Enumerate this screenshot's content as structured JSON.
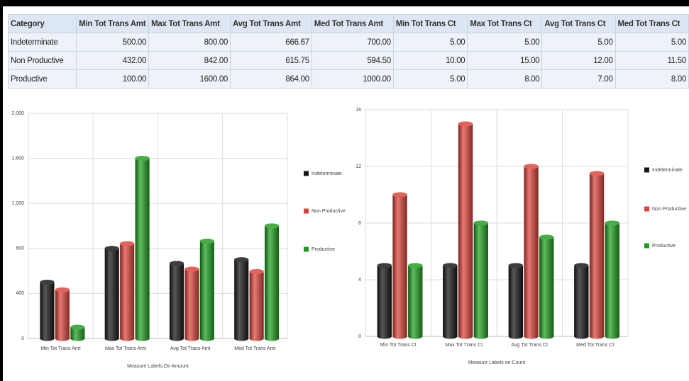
{
  "table": {
    "columns": [
      "Category",
      "Min Tot Trans Amt",
      "Max Tot Trans Amt",
      "Avg Tot Trans Amt",
      "Med Tot Trans Amt",
      "Min Tot Trans Ct",
      "Max Tot Trans Ct",
      "Avg Tot Trans Ct",
      "Med Tot Trans Ct"
    ],
    "rows": [
      [
        "Indeterminate",
        "500.00",
        "800.00",
        "666.67",
        "700.00",
        "5.00",
        "5.00",
        "5.00",
        "5.00"
      ],
      [
        "Non Productive",
        "432.00",
        "842.00",
        "615.75",
        "594.50",
        "10.00",
        "15.00",
        "12.00",
        "11.50"
      ],
      [
        "Productive",
        "100.00",
        "1600.00",
        "864.00",
        "1000.00",
        "5.00",
        "8.00",
        "7.00",
        "8.00"
      ]
    ]
  },
  "chart_data": [
    {
      "type": "bar",
      "x_label": "Measure Labels On Amount",
      "categories": [
        "Min Tot Trans Amt",
        "Max Tot Trans Amt",
        "Avg Tot Trans Amt",
        "Med Tot Trans Amt"
      ],
      "series": [
        {
          "name": "Indeterminate",
          "color": "#151515",
          "values": [
            500,
            800,
            666.67,
            700
          ]
        },
        {
          "name": "Non Productive",
          "color": "#d8423a",
          "values": [
            432,
            842,
            615.75,
            594.5
          ]
        },
        {
          "name": "Productive",
          "color": "#1f9c1f",
          "values": [
            100,
            1600,
            864,
            1000
          ]
        }
      ],
      "ylim": [
        0,
        2000
      ],
      "yticks": [
        0,
        400,
        800,
        {
          "value": 1200,
          "label": "1,200"
        },
        {
          "value": 1600,
          "label": "1,600"
        },
        {
          "value": 2000,
          "label": "2,000"
        }
      ],
      "grid": true,
      "legend": "right"
    },
    {
      "type": "bar",
      "x_label": "Measure Labels on Count",
      "categories": [
        "Min Tot Trans Ct",
        "Max Tot Trans Ct",
        "Avg Tot Trans Ct",
        "Med Tot Trans Ct"
      ],
      "series": [
        {
          "name": "Indeterminate",
          "color": "#151515",
          "values": [
            5,
            5,
            5,
            5
          ]
        },
        {
          "name": "Non Productive",
          "color": "#d8423a",
          "values": [
            10,
            15,
            12,
            11.5
          ]
        },
        {
          "name": "Productive",
          "color": "#1f9c1f",
          "values": [
            5,
            8,
            7,
            8
          ]
        }
      ],
      "ylim": [
        0,
        16
      ],
      "yticks": [
        0,
        4,
        8,
        12,
        16
      ],
      "grid": true,
      "legend": "right"
    }
  ]
}
